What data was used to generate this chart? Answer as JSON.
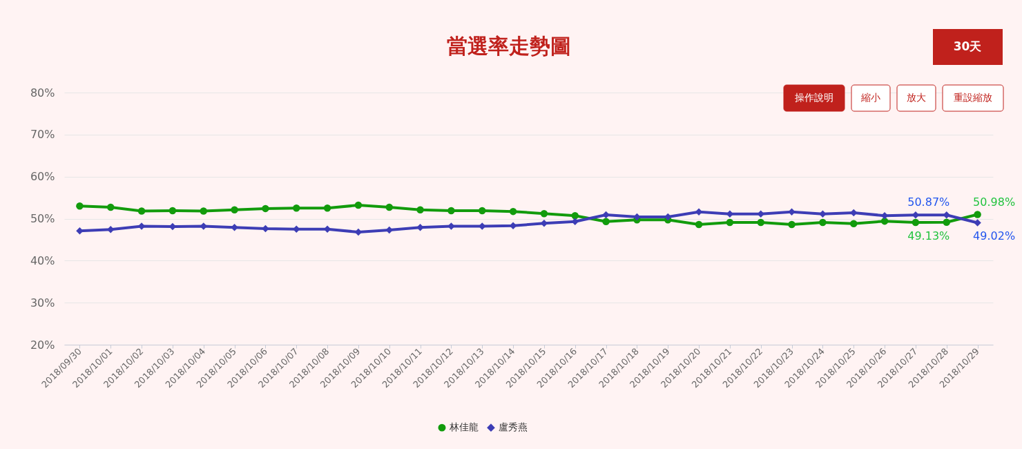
{
  "chart_data": {
    "type": "line",
    "title": "當選率走勢圖",
    "categories": [
      "2018/09/30",
      "2018/10/01",
      "2018/10/02",
      "2018/10/03",
      "2018/10/04",
      "2018/10/05",
      "2018/10/06",
      "2018/10/07",
      "2018/10/08",
      "2018/10/09",
      "2018/10/10",
      "2018/10/11",
      "2018/10/12",
      "2018/10/13",
      "2018/10/14",
      "2018/10/15",
      "2018/10/16",
      "2018/10/17",
      "2018/10/18",
      "2018/10/19",
      "2018/10/20",
      "2018/10/21",
      "2018/10/22",
      "2018/10/23",
      "2018/10/24",
      "2018/10/25",
      "2018/10/26",
      "2018/10/27",
      "2018/10/28",
      "2018/10/29"
    ],
    "series": [
      {
        "name": "林佳龍",
        "color": "#129b0c",
        "marker": "circle",
        "values": [
          53.0,
          52.7,
          51.8,
          51.9,
          51.8,
          52.1,
          52.4,
          52.5,
          52.5,
          53.2,
          52.7,
          52.1,
          51.9,
          51.9,
          51.7,
          51.2,
          50.7,
          49.3,
          49.7,
          49.7,
          48.6,
          49.1,
          49.1,
          48.6,
          49.1,
          48.8,
          49.4,
          49.1,
          49.13,
          50.98
        ],
        "value_labels": [
          null,
          null,
          null,
          null,
          null,
          null,
          null,
          null,
          null,
          null,
          null,
          null,
          null,
          null,
          null,
          null,
          null,
          null,
          null,
          null,
          null,
          null,
          null,
          null,
          null,
          null,
          null,
          null,
          "49.13%",
          "50.98%"
        ]
      },
      {
        "name": "盧秀燕",
        "color": "#3d3db5",
        "marker": "diamond",
        "values": [
          47.1,
          47.4,
          48.2,
          48.1,
          48.2,
          47.9,
          47.6,
          47.5,
          47.5,
          46.8,
          47.3,
          47.9,
          48.2,
          48.2,
          48.3,
          48.9,
          49.3,
          50.9,
          50.4,
          50.4,
          51.6,
          51.1,
          51.1,
          51.6,
          51.1,
          51.4,
          50.7,
          50.87,
          50.87,
          49.02
        ],
        "value_labels": [
          null,
          null,
          null,
          null,
          null,
          null,
          null,
          null,
          null,
          null,
          null,
          null,
          null,
          null,
          null,
          null,
          null,
          null,
          null,
          null,
          null,
          null,
          null,
          null,
          null,
          null,
          null,
          null,
          "50.87%",
          "49.02%"
        ]
      }
    ],
    "ylim": [
      20,
      80
    ],
    "yticks": [
      {
        "value": 20,
        "label": "20%"
      },
      {
        "value": 30,
        "label": "30%"
      },
      {
        "value": 40,
        "label": "40%"
      },
      {
        "value": 50,
        "label": "50%"
      },
      {
        "value": 60,
        "label": "60%"
      },
      {
        "value": 70,
        "label": "70%"
      },
      {
        "value": 80,
        "label": "80%"
      }
    ],
    "grid": "y",
    "legend": "bottom",
    "line_style": "solid",
    "annotations": [
      "30天",
      "操作說明",
      "縮小",
      "放大",
      "重設縮放"
    ]
  }
}
